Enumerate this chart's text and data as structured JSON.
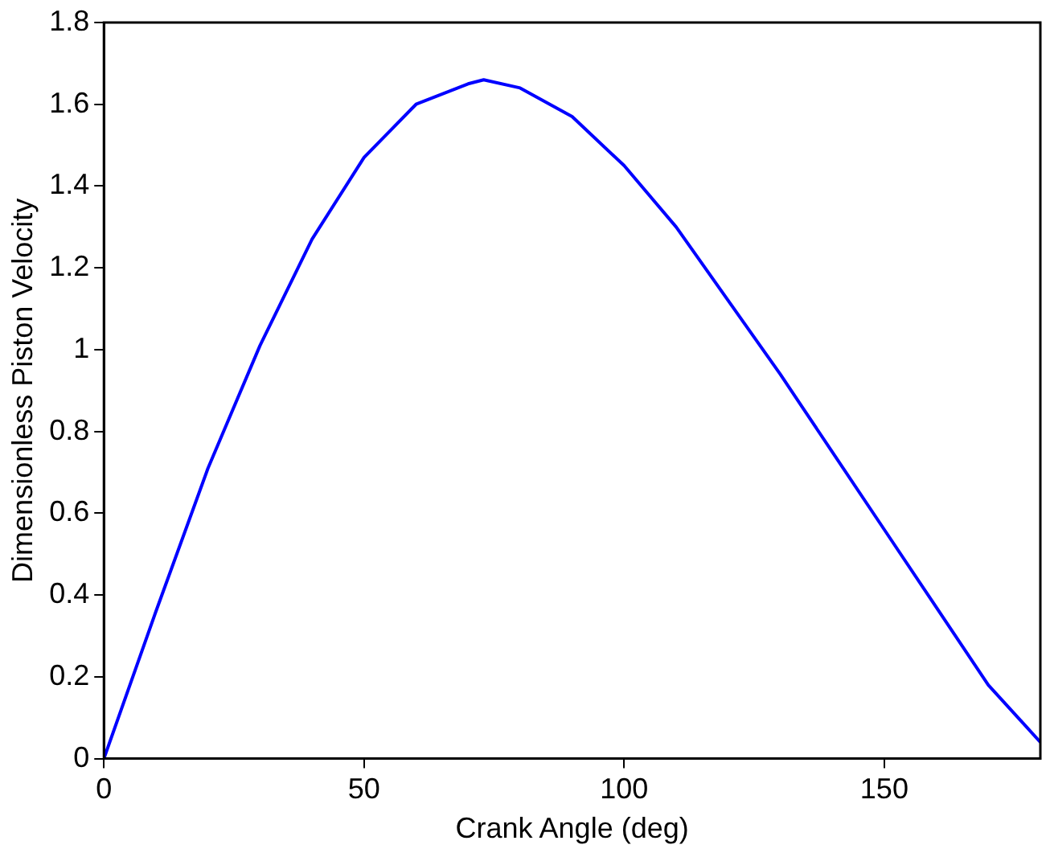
{
  "chart_data": {
    "type": "line",
    "xlabel": "Crank Angle (deg)",
    "ylabel": "Dimensionless Piston Velocity",
    "x": [
      0,
      10,
      20,
      30,
      40,
      50,
      60,
      70,
      73,
      80,
      90,
      100,
      110,
      120,
      130,
      140,
      150,
      160,
      170,
      180
    ],
    "series": [
      {
        "color": "#0000ff",
        "values": [
          0,
          0.36,
          0.71,
          1.01,
          1.27,
          1.47,
          1.6,
          1.65,
          1.66,
          1.64,
          1.57,
          1.45,
          1.3,
          1.12,
          0.94,
          0.75,
          0.56,
          0.37,
          0.18,
          0.04
        ]
      }
    ],
    "xlim": [
      0,
      180
    ],
    "xticks": [
      0,
      50,
      100,
      150
    ],
    "ylim": [
      0,
      1.8
    ],
    "yticks": [
      0,
      0.2,
      0.4,
      0.6,
      0.8,
      1,
      1.2,
      1.4,
      1.6,
      1.8
    ],
    "grid": false,
    "legend": false,
    "marker": "none",
    "line_style": "solid"
  }
}
